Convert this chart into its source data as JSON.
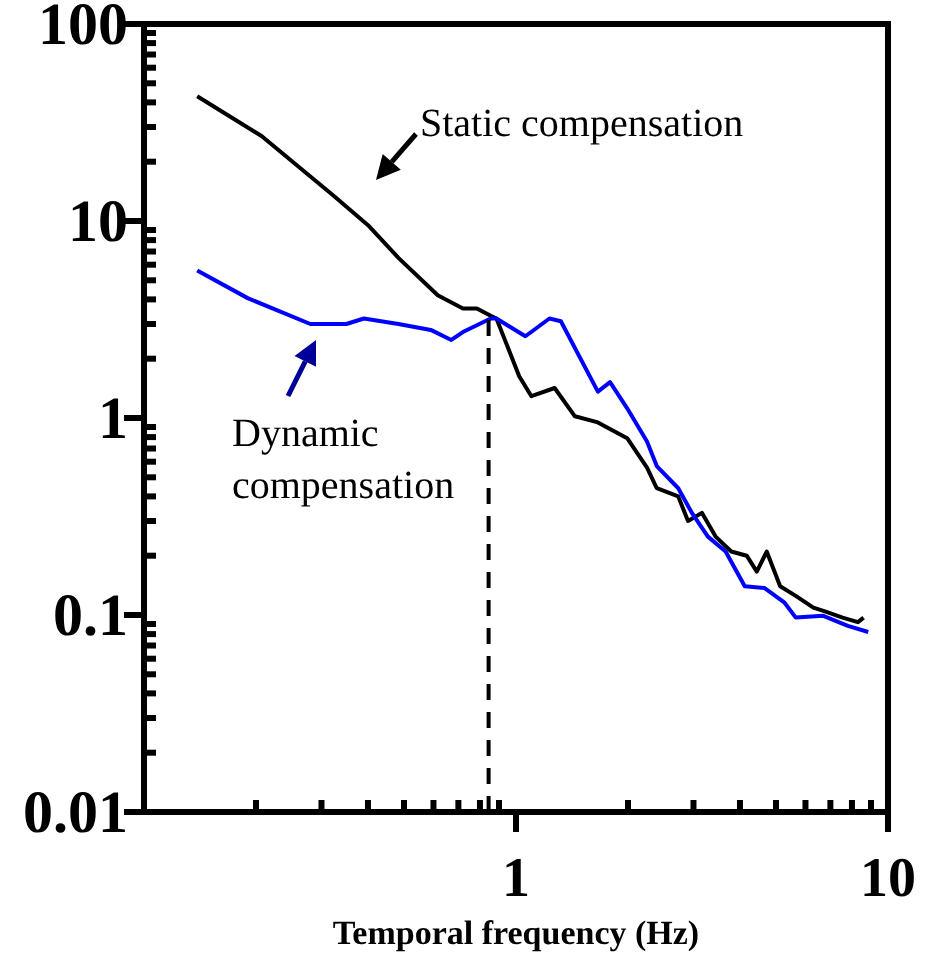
{
  "chart_data": {
    "type": "line",
    "xlabel": "Temporal frequency (Hz)",
    "log": "xy",
    "grid": false,
    "marker": "none",
    "xlim": [
      0.1,
      10
    ],
    "ylim": [
      0.01,
      100
    ],
    "xticks": [
      {
        "value": 0.1,
        "label": null
      },
      {
        "value": 0.2,
        "label": null
      },
      {
        "value": 0.3,
        "label": null
      },
      {
        "value": 0.4,
        "label": null
      },
      {
        "value": 0.5,
        "label": null
      },
      {
        "value": 0.6,
        "label": null
      },
      {
        "value": 0.7,
        "label": null
      },
      {
        "value": 0.8,
        "label": null
      },
      {
        "value": 0.9,
        "label": null
      },
      1,
      {
        "value": 2,
        "label": null
      },
      {
        "value": 3,
        "label": null
      },
      {
        "value": 4,
        "label": null
      },
      {
        "value": 5,
        "label": null
      },
      {
        "value": 6,
        "label": null
      },
      {
        "value": 7,
        "label": null
      },
      {
        "value": 8,
        "label": null
      },
      {
        "value": 9,
        "label": null
      },
      10
    ],
    "yticks": [
      0.01,
      {
        "value": 0.02,
        "label": null
      },
      {
        "value": 0.03,
        "label": null
      },
      {
        "value": 0.04,
        "label": null
      },
      {
        "value": 0.05,
        "label": null
      },
      {
        "value": 0.06,
        "label": null
      },
      {
        "value": 0.07,
        "label": null
      },
      {
        "value": 0.08,
        "label": null
      },
      {
        "value": 0.09,
        "label": null
      },
      0.1,
      {
        "value": 0.2,
        "label": null
      },
      {
        "value": 0.3,
        "label": null
      },
      {
        "value": 0.4,
        "label": null
      },
      {
        "value": 0.5,
        "label": null
      },
      {
        "value": 0.6,
        "label": null
      },
      {
        "value": 0.7,
        "label": null
      },
      {
        "value": 0.8,
        "label": null
      },
      {
        "value": 0.9,
        "label": null
      },
      1,
      {
        "value": 2,
        "label": null
      },
      {
        "value": 3,
        "label": null
      },
      {
        "value": 4,
        "label": null
      },
      {
        "value": 5,
        "label": null
      },
      {
        "value": 6,
        "label": null
      },
      {
        "value": 7,
        "label": null
      },
      {
        "value": 8,
        "label": null
      },
      {
        "value": 9,
        "label": null
      },
      10,
      {
        "value": 20,
        "label": null
      },
      {
        "value": 30,
        "label": null
      },
      {
        "value": 40,
        "label": null
      },
      {
        "value": 50,
        "label": null
      },
      {
        "value": 60,
        "label": null
      },
      {
        "value": 70,
        "label": null
      },
      {
        "value": 80,
        "label": null
      },
      {
        "value": 90,
        "label": null
      },
      100
    ],
    "series": [
      {
        "color": "#000000",
        "line_style": "solid",
        "x": [
          0.139,
          0.207,
          0.324,
          0.403,
          0.483,
          0.616,
          0.72,
          0.785,
          0.855,
          0.886,
          1.02,
          1.1,
          1.27,
          1.44,
          1.66,
          1.99,
          2.25,
          2.39,
          2.73,
          2.9,
          3.16,
          3.44,
          3.79,
          4.17,
          4.44,
          4.72,
          5.13,
          5.65,
          6.3,
          6.8,
          7.55,
          8.3,
          8.6
        ],
        "values": [
          43,
          27,
          13.4,
          9.4,
          6.5,
          4.2,
          3.6,
          3.6,
          3.3,
          3.2,
          1.63,
          1.29,
          1.42,
          1.02,
          0.95,
          0.79,
          0.56,
          0.44,
          0.4,
          0.3,
          0.33,
          0.25,
          0.21,
          0.2,
          0.166,
          0.21,
          0.14,
          0.125,
          0.109,
          0.104,
          0.097,
          0.092,
          0.097
        ]
      },
      {
        "color": "#0000ff",
        "line_style": "solid",
        "x": [
          0.139,
          0.19,
          0.28,
          0.35,
          0.39,
          0.483,
          0.59,
          0.67,
          0.72,
          0.855,
          0.886,
          1.06,
          1.23,
          1.32,
          1.66,
          1.79,
          1.99,
          2.25,
          2.39,
          2.73,
          2.97,
          3.28,
          3.66,
          4.12,
          4.66,
          5.26,
          5.65,
          6.7,
          7.8,
          8.85
        ],
        "values": [
          5.6,
          4.06,
          3,
          3,
          3.2,
          3,
          2.8,
          2.49,
          2.73,
          3.2,
          3.2,
          2.6,
          3.2,
          3.1,
          1.36,
          1.52,
          1.12,
          0.76,
          0.57,
          0.44,
          0.33,
          0.25,
          0.21,
          0.14,
          0.137,
          0.116,
          0.097,
          0.099,
          0.088,
          0.082
        ]
      },
      {
        "color": "#000000",
        "line_style": "dashed",
        "x": [
          0.844,
          0.844
        ],
        "values": [
          0.01,
          3.2
        ]
      }
    ],
    "annotations": [
      "Static compensation",
      "Dynamic compensation"
    ]
  }
}
